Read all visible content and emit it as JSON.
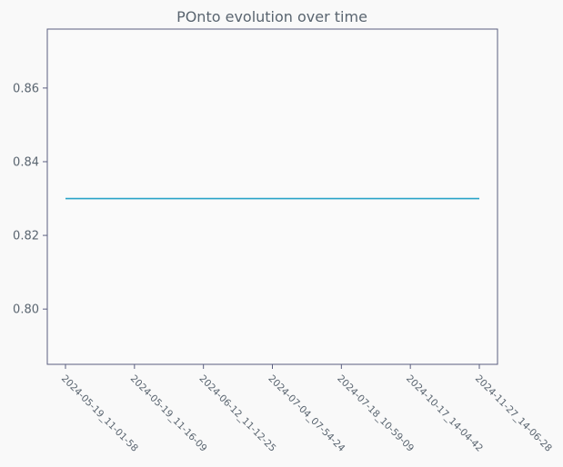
{
  "chart_data": {
    "type": "line",
    "title": "POnto evolution over time",
    "xlabel": "",
    "ylabel": "",
    "categories": [
      "2024-05-19_11-01-58",
      "2024-05-19_11-16-09",
      "2024-06-12_11-12-25",
      "2024-07-04_07-54-24",
      "2024-07-18_10-59-09",
      "2024-10-17_14-04-42",
      "2024-11-27_14-06-28"
    ],
    "series": [
      {
        "values": [
          0.83,
          0.83,
          0.83,
          0.83,
          0.83,
          0.83,
          0.83
        ],
        "color": "#29a3c7"
      }
    ],
    "yticks": [
      0.8,
      0.82,
      0.84,
      0.86
    ],
    "ylim": [
      0.785,
      0.876
    ],
    "grid": false,
    "legend": "none"
  }
}
